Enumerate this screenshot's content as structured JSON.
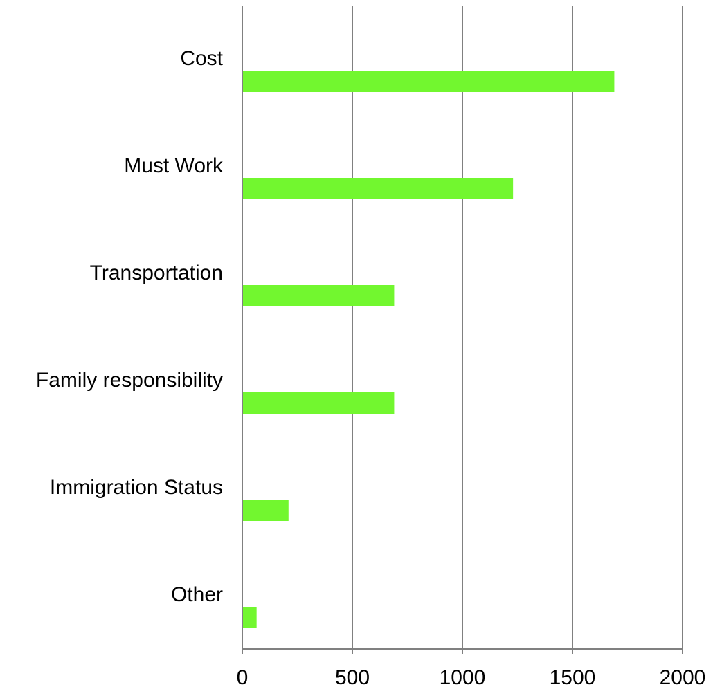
{
  "chart_data": {
    "type": "bar",
    "orientation": "horizontal",
    "categories": [
      "Cost",
      "Must Work",
      "Transportation",
      "Family responsibility",
      "Immigration Status",
      "Other"
    ],
    "values": [
      1690,
      1230,
      690,
      690,
      210,
      65
    ],
    "xlim": [
      0,
      2000
    ],
    "x_ticks": [
      "0",
      "500",
      "1000",
      "1500",
      "2000"
    ],
    "title": "",
    "xlabel": "",
    "ylabel": "",
    "grid": "vertical",
    "legend": "none",
    "bar_color": "#72f72f",
    "grid_color": "#808080"
  }
}
